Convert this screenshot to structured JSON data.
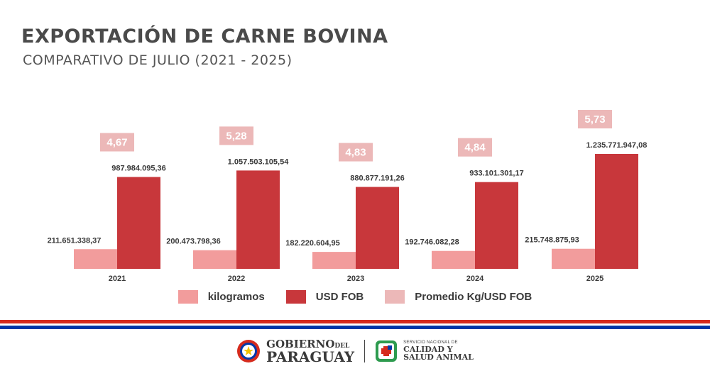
{
  "header": {
    "title": "EXPORTACIÓN DE CARNE BOVINA",
    "subtitle": "COMPARATIVO DE JULIO (2021 - 2025)"
  },
  "colors": {
    "kilogramos": "#f29c9c",
    "usd_fob": "#c8373b",
    "promedio": "#ecb8b8",
    "text": "#3a3a3a",
    "flag_red": "#d52b1e",
    "flag_blue": "#0038a8"
  },
  "chart_data": {
    "type": "bar",
    "categories": [
      "2021",
      "2022",
      "2023",
      "2024",
      "2025"
    ],
    "series": [
      {
        "name": "kilogramos",
        "values": [
          211651338.37,
          200473798.36,
          182220604.95,
          192746082.28,
          215748875.93
        ],
        "labels": [
          "211.651.338,37",
          "200.473.798,36",
          "182.220.604,95",
          "192.746.082,28",
          "215.748.875,93"
        ]
      },
      {
        "name": "USD FOB",
        "values": [
          987984095.36,
          1057503105.54,
          880877191.26,
          933101301.17,
          1235771947.08
        ],
        "labels": [
          "987.984.095,36",
          "1.057.503.105,54",
          "880.877.191,26",
          "933.101.301,17",
          "1.235.771.947,08"
        ]
      },
      {
        "name": "Promedio Kg/USD FOB",
        "values": [
          4.67,
          5.28,
          4.83,
          4.84,
          5.73
        ],
        "labels": [
          "4,67",
          "5,28",
          "4,83",
          "4,84",
          "5,73"
        ]
      }
    ],
    "grid": false,
    "legend_position": "bottom"
  },
  "legend": {
    "kilogramos": "kilogramos",
    "usd_fob": "USD FOB",
    "promedio": "Promedio Kg/USD FOB"
  },
  "footer": {
    "gov_line1_a": "GOBIERNO",
    "gov_line1_b": "DEL",
    "gov_line2": "PARAGUAY",
    "senacsa_line1": "SERVICIO NACIONAL DE",
    "senacsa_line2": "CALIDAD Y",
    "senacsa_line3": "SALUD ANIMAL",
    "icons": [
      "paraguay-seal-icon",
      "senacsa-logo-icon"
    ]
  }
}
